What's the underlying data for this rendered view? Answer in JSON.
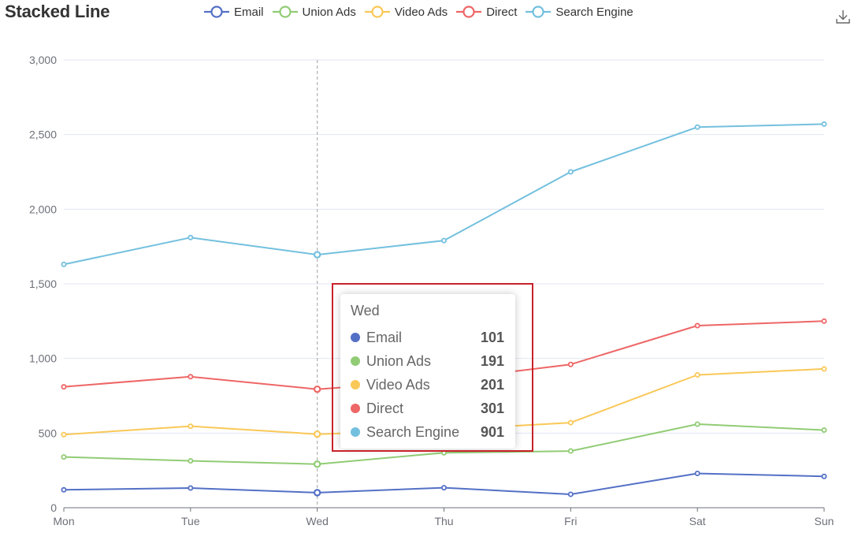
{
  "chart_data": {
    "type": "line",
    "title": "Stacked Line",
    "categories": [
      "Mon",
      "Tue",
      "Wed",
      "Thu",
      "Fri",
      "Sat",
      "Sun"
    ],
    "series": [
      {
        "name": "Email",
        "color": "#5470c6",
        "values": [
          120,
          132,
          101,
          134,
          90,
          230,
          210
        ]
      },
      {
        "name": "Union Ads",
        "color": "#91cc75",
        "values": [
          220,
          182,
          191,
          234,
          290,
          330,
          310
        ]
      },
      {
        "name": "Video Ads",
        "color": "#fac858",
        "values": [
          150,
          232,
          201,
          154,
          190,
          330,
          410
        ]
      },
      {
        "name": "Direct",
        "color": "#ee6666",
        "values": [
          320,
          332,
          301,
          334,
          390,
          330,
          320
        ]
      },
      {
        "name": "Search Engine",
        "color": "#73c0de",
        "values": [
          820,
          932,
          901,
          934,
          1290,
          1330,
          1320
        ]
      }
    ],
    "stacked": true,
    "ylim": [
      0,
      3000
    ],
    "yticks": [
      0,
      500,
      1000,
      1500,
      2000,
      2500,
      3000
    ],
    "ytick_labels": [
      "0",
      "500",
      "1,000",
      "1,500",
      "2,000",
      "2,500",
      "3,000"
    ],
    "grid": "horizontal",
    "legend_position": "top",
    "highlighted_category_index": 2
  },
  "tooltip": {
    "title": "Wed",
    "rows": [
      {
        "name": "Email",
        "value": "101",
        "color": "#5470c6"
      },
      {
        "name": "Union Ads",
        "value": "191",
        "color": "#91cc75"
      },
      {
        "name": "Video Ads",
        "value": "201",
        "color": "#fac858"
      },
      {
        "name": "Direct",
        "value": "301",
        "color": "#ee6666"
      },
      {
        "name": "Search Engine",
        "value": "901",
        "color": "#73c0de"
      }
    ]
  },
  "toolbar": {
    "download_icon": "download-icon"
  }
}
